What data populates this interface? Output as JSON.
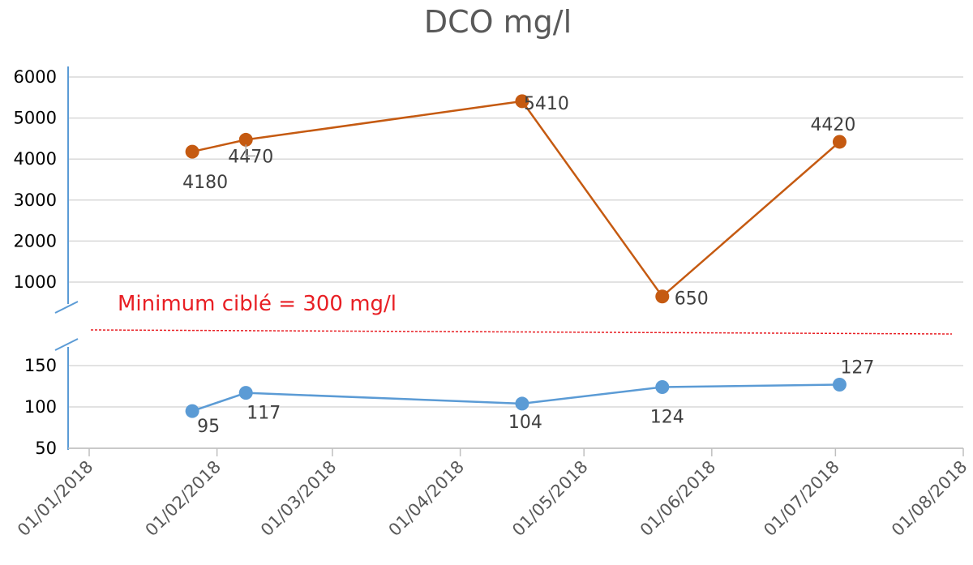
{
  "chart_data": {
    "type": "line",
    "title": "DCO mg/l",
    "xlabel": "",
    "ylabel": "",
    "x_ticks": [
      "01/01/2018",
      "01/02/2018",
      "01/03/2018",
      "01/04/2018",
      "01/05/2018",
      "01/06/2018",
      "01/07/2018",
      "01/08/2018"
    ],
    "x_range": [
      "2018-01-01",
      "2018-08-01"
    ],
    "y_axis_broken": true,
    "upper_panel": {
      "yticks": [
        1000,
        2000,
        3000,
        4000,
        5000,
        6000
      ],
      "ylim": [
        0,
        6000
      ],
      "grid": true
    },
    "lower_panel": {
      "yticks": [
        50,
        100,
        150
      ],
      "ylim": [
        50,
        180
      ],
      "grid": true
    },
    "series": [
      {
        "color": "#c55a11",
        "panel": "upper",
        "points": [
          {
            "x": "2018-01-26",
            "y": 4180
          },
          {
            "x": "2018-02-08",
            "y": 4470
          },
          {
            "x": "2018-04-16",
            "y": 5410
          },
          {
            "x": "2018-05-20",
            "y": 650
          },
          {
            "x": "2018-07-02",
            "y": 4420
          }
        ],
        "labels": [
          "4180",
          "4470",
          "5410",
          "650",
          "4420"
        ]
      },
      {
        "color": "#5b9bd5",
        "panel": "lower",
        "points": [
          {
            "x": "2018-01-26",
            "y": 95
          },
          {
            "x": "2018-02-08",
            "y": 117
          },
          {
            "x": "2018-04-16",
            "y": 104
          },
          {
            "x": "2018-05-20",
            "y": 124
          },
          {
            "x": "2018-07-02",
            "y": 127
          }
        ],
        "labels": [
          "95",
          "117",
          "104",
          "124",
          "127"
        ]
      }
    ],
    "threshold": {
      "label": "Minimum ciblé = 300 mg/l",
      "color": "#e81f24"
    },
    "legend": "none"
  }
}
